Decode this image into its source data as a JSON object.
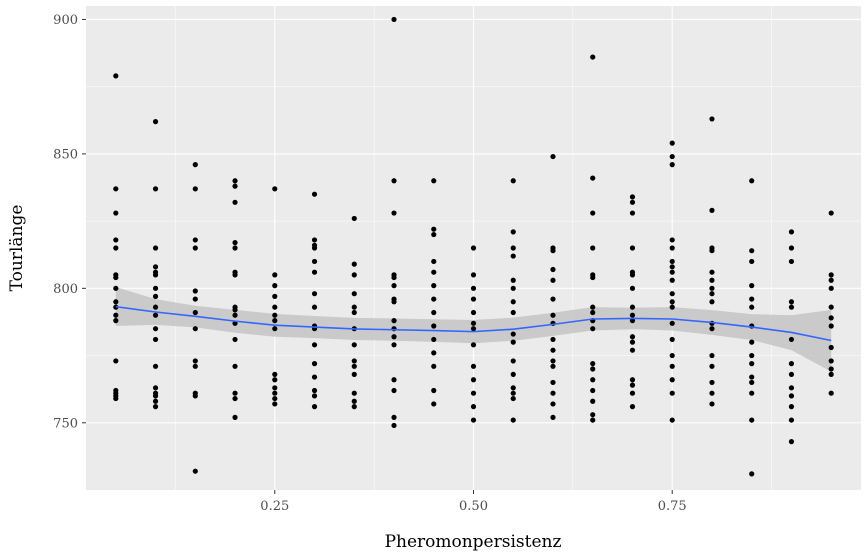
{
  "chart_data": {
    "type": "scatter",
    "title": "",
    "xlabel": "Pheromonpersistenz",
    "ylabel": "Tourlänge",
    "xlim": [
      0.0125,
      0.9875
    ],
    "ylim": [
      725,
      905
    ],
    "x_ticks": [
      0.25,
      0.5,
      0.75
    ],
    "x_tick_labels": [
      "0.25",
      "0.50",
      "0.75"
    ],
    "y_ticks": [
      750,
      800,
      850,
      900
    ],
    "y_tick_labels": [
      "750",
      "800",
      "850",
      "900"
    ],
    "grid": true,
    "background": "#ebebeb",
    "grid_color": "#ffffff",
    "point_color": "#000000",
    "smooth_color": "#3366ff",
    "band_color": "#c4c4c4",
    "points_by_x": [
      {
        "x": 0.05,
        "y": [
          879,
          837,
          828,
          818,
          815,
          805,
          804,
          800,
          795,
          793,
          790,
          788,
          773,
          762,
          761,
          760,
          759
        ]
      },
      {
        "x": 0.1,
        "y": [
          862,
          837,
          815,
          808,
          806,
          805,
          800,
          797,
          793,
          790,
          785,
          781,
          771,
          763,
          761,
          760,
          758,
          756
        ]
      },
      {
        "x": 0.15,
        "y": [
          846,
          837,
          818,
          815,
          799,
          796,
          791,
          785,
          773,
          771,
          761,
          760,
          732
        ]
      },
      {
        "x": 0.2,
        "y": [
          840,
          838,
          832,
          817,
          815,
          806,
          805,
          793,
          792,
          790,
          787,
          781,
          771,
          761,
          759,
          752
        ]
      },
      {
        "x": 0.25,
        "y": [
          837,
          805,
          801,
          797,
          793,
          790,
          788,
          785,
          768,
          766,
          763,
          761,
          759,
          757
        ]
      },
      {
        "x": 0.3,
        "y": [
          835,
          818,
          816,
          815,
          810,
          806,
          798,
          793,
          786,
          785,
          779,
          772,
          767,
          762,
          760,
          756
        ]
      },
      {
        "x": 0.35,
        "y": [
          826,
          809,
          805,
          798,
          793,
          791,
          785,
          779,
          773,
          771,
          768,
          761,
          758,
          756
        ]
      },
      {
        "x": 0.4,
        "y": [
          900,
          840,
          828,
          805,
          804,
          801,
          796,
          795,
          788,
          785,
          782,
          779,
          766,
          762,
          752,
          749
        ]
      },
      {
        "x": 0.45,
        "y": [
          840,
          822,
          820,
          810,
          806,
          801,
          796,
          791,
          786,
          781,
          776,
          771,
          762,
          757
        ]
      },
      {
        "x": 0.5,
        "y": [
          815,
          805,
          800,
          796,
          791,
          787,
          785,
          779,
          771,
          766,
          761,
          756,
          751
        ]
      },
      {
        "x": 0.55,
        "y": [
          840,
          821,
          815,
          812,
          803,
          800,
          795,
          791,
          783,
          780,
          773,
          768,
          763,
          761,
          759,
          751
        ]
      },
      {
        "x": 0.6,
        "y": [
          849,
          815,
          814,
          807,
          803,
          796,
          790,
          787,
          781,
          777,
          773,
          771,
          765,
          761,
          757,
          752
        ]
      },
      {
        "x": 0.65,
        "y": [
          886,
          841,
          828,
          815,
          805,
          804,
          793,
          791,
          788,
          785,
          772,
          770,
          766,
          762,
          758,
          753,
          751
        ]
      },
      {
        "x": 0.7,
        "y": [
          834,
          832,
          828,
          815,
          806,
          805,
          800,
          793,
          790,
          788,
          782,
          780,
          777,
          766,
          764,
          761,
          756
        ]
      },
      {
        "x": 0.75,
        "y": [
          854,
          849,
          846,
          818,
          815,
          810,
          808,
          806,
          803,
          798,
          795,
          793,
          787,
          781,
          775,
          771,
          766,
          761,
          751
        ]
      },
      {
        "x": 0.8,
        "y": [
          863,
          829,
          815,
          814,
          806,
          803,
          800,
          798,
          795,
          787,
          785,
          775,
          771,
          765,
          761,
          757
        ]
      },
      {
        "x": 0.85,
        "y": [
          840,
          814,
          810,
          801,
          796,
          793,
          786,
          780,
          775,
          772,
          767,
          765,
          761,
          751,
          731
        ]
      },
      {
        "x": 0.9,
        "y": [
          821,
          815,
          810,
          795,
          793,
          781,
          772,
          768,
          763,
          760,
          756,
          751,
          743
        ]
      },
      {
        "x": 0.95,
        "y": [
          828,
          805,
          803,
          800,
          793,
          789,
          786,
          778,
          773,
          770,
          768,
          761
        ]
      }
    ],
    "smooth_line": {
      "x": [
        0.05,
        0.1,
        0.15,
        0.2,
        0.25,
        0.3,
        0.35,
        0.4,
        0.45,
        0.5,
        0.55,
        0.6,
        0.65,
        0.7,
        0.75,
        0.8,
        0.85,
        0.9,
        0.95
      ],
      "y": [
        793.2,
        791.2,
        789.6,
        787.8,
        786.3,
        785.6,
        784.9,
        784.6,
        784.3,
        783.9,
        784.8,
        786.6,
        788.6,
        788.8,
        788.6,
        787.3,
        785.6,
        783.6,
        780.6
      ]
    },
    "band_lower": [
      786.0,
      786.4,
      785.5,
      783.5,
      782.0,
      781.5,
      780.8,
      780.5,
      780.1,
      779.6,
      780.5,
      782.3,
      784.3,
      784.8,
      784.3,
      782.7,
      780.8,
      777.0,
      769.0
    ],
    "band_upper": [
      800.5,
      796.0,
      793.5,
      792.0,
      790.5,
      789.7,
      789.0,
      788.8,
      788.5,
      788.2,
      789.1,
      790.9,
      793.0,
      792.8,
      793.0,
      791.9,
      790.4,
      790.0,
      792.0
    ]
  }
}
